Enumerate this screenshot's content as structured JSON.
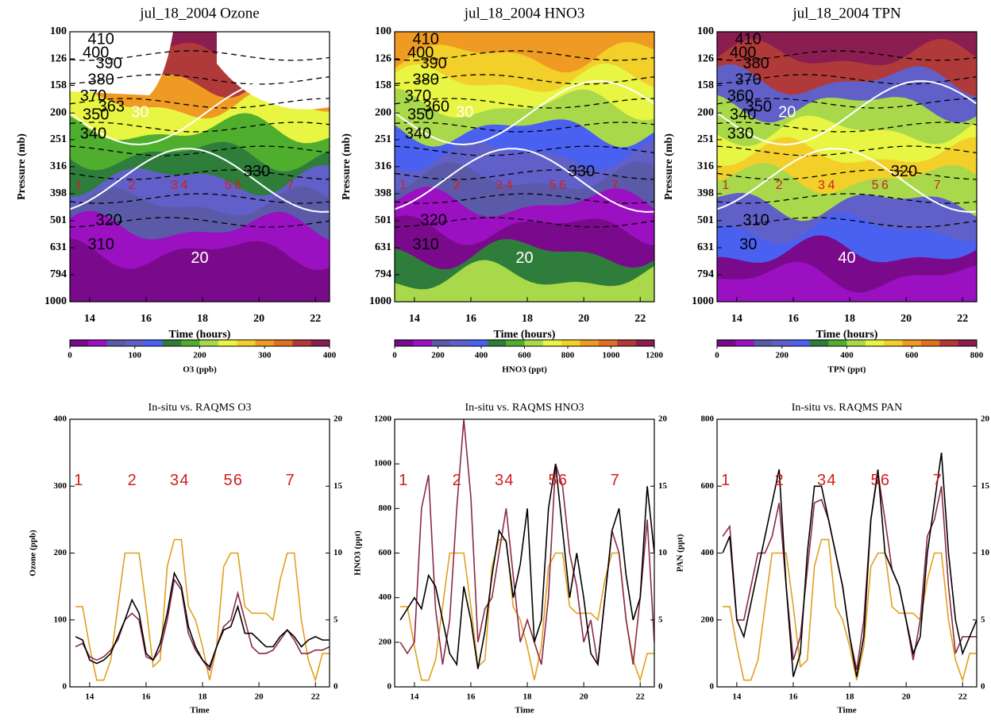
{
  "chart_data": [
    {
      "type": "contour",
      "title": "jul_18_2004   Ozone",
      "xlabel": "Time (hours)",
      "ylabel": "Pressure (mb)",
      "xlim": [
        13.3,
        22.5
      ],
      "xticks": [
        14,
        16,
        18,
        20,
        22
      ],
      "ylim": [
        1000,
        100
      ],
      "log_y": true,
      "yticks": [
        100,
        126,
        158,
        200,
        251,
        316,
        398,
        501,
        631,
        794,
        1000
      ],
      "contour_labels": [
        "410",
        "400",
        "390",
        "380",
        "370",
        "363",
        "350",
        "340",
        "330",
        "320",
        "310",
        "30",
        "20"
      ],
      "legs": [
        {
          "label": "1",
          "x": 13.6
        },
        {
          "label": "2",
          "x": 15.5
        },
        {
          "label": "3",
          "x": 17.0
        },
        {
          "label": "4",
          "x": 17.35
        },
        {
          "label": "5",
          "x": 18.9
        },
        {
          "label": "6",
          "x": 19.25
        },
        {
          "label": "7",
          "x": 21.1
        }
      ],
      "colorbar": {
        "label": "O3 (ppb)",
        "lim": [
          0,
          400
        ],
        "ticks": [
          0,
          100,
          200,
          300,
          400
        ],
        "colors": [
          "#7a0a8c",
          "#9b10c0",
          "#5a5aa8",
          "#6060c8",
          "#4a60f0",
          "#2f7d3a",
          "#4fae2e",
          "#a9d94b",
          "#e8f542",
          "#f3cf2a",
          "#ef9a22",
          "#e07020",
          "#b03a3a",
          "#8a1e50"
        ]
      }
    },
    {
      "type": "contour",
      "title": "jul_18_2004   HNO3",
      "xlabel": "Time (hours)",
      "ylabel": "Pressure (mb)",
      "xlim": [
        13.3,
        22.5
      ],
      "xticks": [
        14,
        16,
        18,
        20,
        22
      ],
      "ylim": [
        1000,
        100
      ],
      "log_y": true,
      "yticks": [
        100,
        126,
        158,
        200,
        251,
        316,
        398,
        501,
        631,
        794,
        1000
      ],
      "contour_labels": [
        "410",
        "400",
        "390",
        "380",
        "370",
        "360",
        "350",
        "340",
        "330",
        "320",
        "310",
        "30",
        "20"
      ],
      "legs": [
        {
          "label": "1",
          "x": 13.6
        },
        {
          "label": "2",
          "x": 15.5
        },
        {
          "label": "3",
          "x": 17.0
        },
        {
          "label": "4",
          "x": 17.35
        },
        {
          "label": "5",
          "x": 18.9
        },
        {
          "label": "6",
          "x": 19.25
        },
        {
          "label": "7",
          "x": 21.1
        }
      ],
      "colorbar": {
        "label": "HNO3 (ppt)",
        "lim": [
          0,
          1200
        ],
        "ticks": [
          0,
          200,
          400,
          600,
          800,
          1000,
          1200
        ],
        "colors": [
          "#7a0a8c",
          "#9b10c0",
          "#5a5aa8",
          "#6060c8",
          "#4a60f0",
          "#2f7d3a",
          "#4fae2e",
          "#a9d94b",
          "#e8f542",
          "#f3cf2a",
          "#ef9a22",
          "#e07020",
          "#b03a3a",
          "#8a1e50"
        ]
      }
    },
    {
      "type": "contour",
      "title": "jul_18_2004   TPN",
      "xlabel": "Time (hours)",
      "ylabel": "Pressure (mb)",
      "xlim": [
        13.3,
        22.5
      ],
      "xticks": [
        14,
        16,
        18,
        20,
        22
      ],
      "ylim": [
        1000,
        100
      ],
      "log_y": true,
      "yticks": [
        100,
        126,
        158,
        200,
        251,
        316,
        398,
        501,
        631,
        794,
        1000
      ],
      "contour_labels": [
        "410",
        "400",
        "380",
        "370",
        "360",
        "350",
        "340",
        "330",
        "320",
        "310",
        "30",
        "20",
        "40"
      ],
      "legs": [
        {
          "label": "1",
          "x": 13.6
        },
        {
          "label": "2",
          "x": 15.5
        },
        {
          "label": "3",
          "x": 17.0
        },
        {
          "label": "4",
          "x": 17.35
        },
        {
          "label": "5",
          "x": 18.9
        },
        {
          "label": "6",
          "x": 19.25
        },
        {
          "label": "7",
          "x": 21.1
        }
      ],
      "colorbar": {
        "label": "TPN (ppt)",
        "lim": [
          0,
          800
        ],
        "ticks": [
          0,
          200,
          400,
          600,
          800
        ],
        "colors": [
          "#7a0a8c",
          "#9b10c0",
          "#5a5aa8",
          "#6060c8",
          "#4a60f0",
          "#2f7d3a",
          "#4fae2e",
          "#a9d94b",
          "#e8f542",
          "#f3cf2a",
          "#ef9a22",
          "#e07020",
          "#b03a3a",
          "#8a1e50"
        ]
      }
    },
    {
      "type": "line",
      "title": "In-situ vs. RAQMS O3",
      "xlabel": "Time",
      "ylabel": "Ozone (ppb)",
      "xlim": [
        13.3,
        22.5
      ],
      "xticks": [
        14,
        16,
        18,
        20,
        22
      ],
      "ylim": [
        0,
        400
      ],
      "yticks": [
        0,
        100,
        200,
        300,
        400
      ],
      "y2lim": [
        0,
        20
      ],
      "y2ticks": [
        0,
        5,
        10,
        15,
        20
      ],
      "legs": [
        {
          "label": "1",
          "x": 13.6
        },
        {
          "label": "2",
          "x": 15.5
        },
        {
          "label": "3",
          "x": 17.0
        },
        {
          "label": "4",
          "x": 17.35
        },
        {
          "label": "5",
          "x": 18.9
        },
        {
          "label": "6",
          "x": 19.25
        },
        {
          "label": "7",
          "x": 21.1
        }
      ],
      "x": [
        13.5,
        13.75,
        14,
        14.25,
        14.5,
        14.75,
        15,
        15.25,
        15.5,
        15.75,
        16,
        16.25,
        16.5,
        16.75,
        17,
        17.25,
        17.5,
        17.75,
        18,
        18.25,
        18.5,
        18.75,
        19,
        19.25,
        19.5,
        19.75,
        20,
        20.25,
        20.5,
        20.75,
        21,
        21.25,
        21.5,
        21.75,
        22,
        22.25,
        22.5
      ],
      "series": [
        {
          "color": "#e0a020",
          "axis": "y2",
          "values": [
            6,
            6,
            3,
            0.5,
            0.5,
            2,
            6,
            10,
            10,
            10,
            6,
            1.5,
            2,
            9,
            11,
            11,
            6,
            5,
            3,
            0.5,
            3,
            9,
            10,
            10,
            6,
            5.5,
            5.5,
            5.5,
            5,
            8,
            10,
            10,
            5,
            2,
            0.5,
            2.5,
            2.5
          ]
        },
        {
          "color": "#8b2a45",
          "values": [
            60,
            65,
            45,
            40,
            45,
            55,
            70,
            100,
            110,
            100,
            45,
            40,
            55,
            100,
            160,
            145,
            80,
            55,
            40,
            25,
            60,
            90,
            100,
            140,
            100,
            60,
            50,
            50,
            55,
            70,
            85,
            70,
            50,
            50,
            55,
            55,
            60
          ]
        },
        {
          "color": "#000000",
          "values": [
            75,
            70,
            40,
            35,
            40,
            50,
            75,
            100,
            130,
            110,
            50,
            40,
            65,
            110,
            170,
            150,
            90,
            60,
            40,
            30,
            60,
            85,
            90,
            120,
            80,
            80,
            70,
            60,
            60,
            75,
            85,
            75,
            60,
            70,
            75,
            70,
            70
          ]
        }
      ]
    },
    {
      "type": "line",
      "title": "In-situ vs. RAQMS HNO3",
      "xlabel": "Time",
      "ylabel": "HNO3 (ppt)",
      "xlim": [
        13.3,
        22.5
      ],
      "xticks": [
        14,
        16,
        18,
        20,
        22
      ],
      "ylim": [
        0,
        1200
      ],
      "yticks": [
        0,
        200,
        400,
        600,
        800,
        1000,
        1200
      ],
      "y2lim": [
        0,
        20
      ],
      "y2ticks": [
        0,
        5,
        10,
        15,
        20
      ],
      "legs": [
        {
          "label": "1",
          "x": 13.6
        },
        {
          "label": "2",
          "x": 15.5
        },
        {
          "label": "3",
          "x": 17.0
        },
        {
          "label": "4",
          "x": 17.35
        },
        {
          "label": "5",
          "x": 18.9
        },
        {
          "label": "6",
          "x": 19.25
        },
        {
          "label": "7",
          "x": 21.1
        }
      ],
      "x": [
        13.5,
        13.75,
        14,
        14.25,
        14.5,
        14.75,
        15,
        15.25,
        15.5,
        15.75,
        16,
        16.25,
        16.5,
        16.75,
        17,
        17.25,
        17.5,
        17.75,
        18,
        18.25,
        18.5,
        18.75,
        19,
        19.25,
        19.5,
        19.75,
        20,
        20.25,
        20.5,
        20.75,
        21,
        21.25,
        21.5,
        21.75,
        22,
        22.25,
        22.5
      ],
      "series": [
        {
          "color": "#e0a020",
          "axis": "y2",
          "values": [
            6,
            6,
            3,
            0.5,
            0.5,
            2,
            6,
            10,
            10,
            10,
            6,
            1.5,
            2,
            9,
            11,
            11,
            6,
            5,
            3,
            0.5,
            3,
            9,
            10,
            10,
            6,
            5.5,
            5.5,
            5.5,
            5,
            8,
            10,
            10,
            5,
            2,
            0.5,
            2.5,
            2.5
          ]
        },
        {
          "color": "#8b2a45",
          "values": [
            200,
            150,
            200,
            800,
            950,
            350,
            100,
            300,
            800,
            1200,
            850,
            200,
            350,
            400,
            600,
            800,
            500,
            200,
            300,
            200,
            100,
            400,
            1000,
            900,
            600,
            450,
            200,
            300,
            100,
            400,
            700,
            600,
            300,
            100,
            400,
            750,
            200
          ]
        },
        {
          "color": "#000000",
          "values": [
            300,
            350,
            400,
            350,
            500,
            450,
            300,
            150,
            100,
            450,
            300,
            80,
            250,
            500,
            700,
            650,
            400,
            550,
            800,
            200,
            300,
            800,
            1000,
            700,
            400,
            600,
            400,
            150,
            100,
            400,
            700,
            800,
            500,
            300,
            400,
            900,
            600
          ]
        }
      ]
    },
    {
      "type": "line",
      "title": "In-situ vs. RAQMS PAN",
      "xlabel": "Time",
      "ylabel": "PAN (ppt)",
      "xlim": [
        13.3,
        22.5
      ],
      "xticks": [
        14,
        16,
        18,
        20,
        22
      ],
      "ylim": [
        0,
        800
      ],
      "yticks": [
        0,
        200,
        400,
        600,
        800
      ],
      "y2lim": [
        0,
        20
      ],
      "y2ticks": [
        0,
        5,
        10,
        15,
        20
      ],
      "legs": [
        {
          "label": "1",
          "x": 13.6
        },
        {
          "label": "2",
          "x": 15.5
        },
        {
          "label": "3",
          "x": 17.0
        },
        {
          "label": "4",
          "x": 17.35
        },
        {
          "label": "5",
          "x": 18.9
        },
        {
          "label": "6",
          "x": 19.25
        },
        {
          "label": "7",
          "x": 21.1
        }
      ],
      "x": [
        13.5,
        13.75,
        14,
        14.25,
        14.5,
        14.75,
        15,
        15.25,
        15.5,
        15.75,
        16,
        16.25,
        16.5,
        16.75,
        17,
        17.25,
        17.5,
        17.75,
        18,
        18.25,
        18.5,
        18.75,
        19,
        19.25,
        19.5,
        19.75,
        20,
        20.25,
        20.5,
        20.75,
        21,
        21.25,
        21.5,
        21.75,
        22,
        22.25,
        22.5
      ],
      "series": [
        {
          "color": "#e0a020",
          "axis": "y2",
          "values": [
            6,
            6,
            3,
            0.5,
            0.5,
            2,
            6,
            10,
            10,
            10,
            6,
            1.5,
            2,
            9,
            11,
            11,
            6,
            5,
            3,
            0.5,
            3,
            9,
            10,
            10,
            6,
            5.5,
            5.5,
            5.5,
            5,
            8,
            10,
            10,
            5,
            2,
            0.5,
            2.5,
            2.5
          ]
        },
        {
          "color": "#8b2a45",
          "values": [
            450,
            480,
            200,
            200,
            300,
            400,
            400,
            450,
            550,
            300,
            80,
            150,
            350,
            550,
            560,
            500,
            400,
            300,
            150,
            50,
            200,
            500,
            640,
            500,
            350,
            300,
            200,
            80,
            200,
            450,
            500,
            600,
            300,
            100,
            150,
            150,
            150
          ]
        },
        {
          "color": "#000000",
          "values": [
            400,
            450,
            200,
            150,
            250,
            350,
            450,
            550,
            650,
            300,
            30,
            100,
            400,
            600,
            600,
            500,
            400,
            300,
            150,
            30,
            150,
            500,
            650,
            400,
            350,
            300,
            200,
            100,
            150,
            400,
            550,
            700,
            400,
            200,
            100,
            150,
            200
          ]
        }
      ]
    }
  ]
}
